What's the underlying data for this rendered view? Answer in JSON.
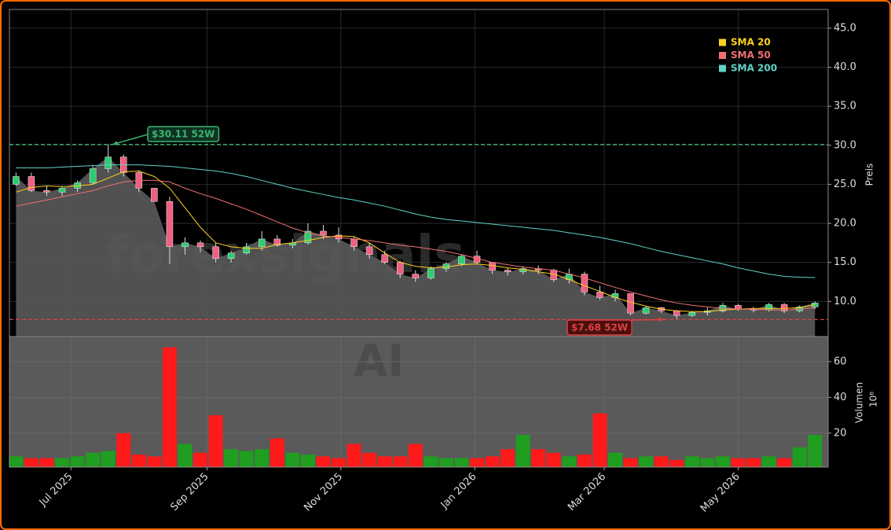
{
  "chart_data": {
    "type": "candlestick",
    "ylabel": "Preis",
    "watermarks": [
      "forexsignals",
      "AI"
    ],
    "x": [
      "2025-06-06",
      "2025-06-13",
      "2025-06-20",
      "2025-06-27",
      "2025-07-04",
      "2025-07-11",
      "2025-07-18",
      "2025-07-25",
      "2025-08-01",
      "2025-08-08",
      "2025-08-15",
      "2025-08-22",
      "2025-08-29",
      "2025-09-05",
      "2025-09-12",
      "2025-09-19",
      "2025-09-26",
      "2025-10-03",
      "2025-10-10",
      "2025-10-17",
      "2025-10-24",
      "2025-10-31",
      "2025-11-07",
      "2025-11-14",
      "2025-11-21",
      "2025-11-28",
      "2025-12-05",
      "2025-12-12",
      "2025-12-19",
      "2025-12-26",
      "2026-01-02",
      "2026-01-09",
      "2026-01-16",
      "2026-01-23",
      "2026-01-30",
      "2026-02-06",
      "2026-02-13",
      "2026-02-20",
      "2026-02-27",
      "2026-03-06",
      "2026-03-13",
      "2026-03-20",
      "2026-03-27",
      "2026-04-03",
      "2026-04-10",
      "2026-04-17",
      "2026-04-24",
      "2026-05-01",
      "2026-05-08",
      "2026-05-15",
      "2026-05-22",
      "2026-05-29",
      "2026-06-05"
    ],
    "open": [
      25,
      26,
      24.2,
      24,
      24.5,
      25.2,
      27,
      28.5,
      26.5,
      24.5,
      22.8,
      17,
      17.5,
      17,
      15.5,
      16.2,
      17,
      18,
      17.2,
      17.5,
      19,
      18.5,
      18,
      17,
      16,
      15,
      13.5,
      13,
      14.2,
      14.8,
      15.8,
      15,
      14,
      13.8,
      14.2,
      14,
      12.8,
      13.5,
      11.2,
      10.5,
      11,
      8.5,
      9.2,
      8.8,
      8.2,
      8.6,
      8.8,
      9.5,
      9,
      8.9,
      9.6,
      8.8,
      9.3
    ],
    "high": [
      26.5,
      26.5,
      24.8,
      24.8,
      25.5,
      27.5,
      30.11,
      28.8,
      26.8,
      24.5,
      23.4,
      18.2,
      17.8,
      17.5,
      16.5,
      17.5,
      19,
      18.5,
      18,
      20,
      19.8,
      19.5,
      18.3,
      17.5,
      16.5,
      15.2,
      14,
      14.5,
      15,
      16,
      16.5,
      15,
      14.3,
      14.5,
      14.6,
      14.2,
      14.2,
      13.8,
      12,
      11.5,
      11,
      9.4,
      9.3,
      8.9,
      8.8,
      9.2,
      9.8,
      9.7,
      9.3,
      9.8,
      9.8,
      9.5,
      10
    ],
    "low": [
      24.8,
      24,
      23.5,
      23.5,
      24,
      25,
      26.5,
      26,
      24,
      22.8,
      14.8,
      16,
      16.3,
      15,
      15,
      16,
      16.5,
      17,
      16.8,
      17.3,
      18,
      17.5,
      16.5,
      15.5,
      14.8,
      13,
      12.5,
      12.8,
      13.8,
      14.5,
      14.8,
      13.5,
      13.3,
      13.5,
      13.5,
      12.5,
      12.3,
      10.8,
      10.2,
      10,
      8.2,
      8.3,
      8.5,
      7.68,
      8,
      8.2,
      8.6,
      8.8,
      8.6,
      8.7,
      8.5,
      8.6,
      9
    ],
    "close": [
      26,
      24.2,
      24,
      24.5,
      25.2,
      27,
      28.5,
      26.5,
      24.5,
      22.8,
      17,
      17.5,
      17,
      15.5,
      16.2,
      17,
      18,
      17.2,
      17.5,
      19,
      18.5,
      18,
      17,
      16,
      15,
      13.5,
      13,
      14.2,
      14.8,
      15.8,
      15,
      14,
      13.8,
      14.2,
      14,
      12.8,
      13.5,
      11.2,
      10.5,
      11,
      8.5,
      9.2,
      8.8,
      8.2,
      8.6,
      8.8,
      9.5,
      9,
      8.9,
      9.6,
      8.8,
      9.3,
      9.8
    ],
    "up_color": "#2ecc71",
    "down_color": "#f06080",
    "volume_up_color": "#1f9e1f",
    "volume_down_color": "#ff1a1a",
    "series": [
      {
        "name": "SMA 20",
        "color": "#ffd21f",
        "values": [
          24,
          24.6,
          24.8,
          24.7,
          24.8,
          25,
          25.8,
          26.6,
          26.7,
          26,
          24.5,
          22,
          19.5,
          17.5,
          17,
          16.8,
          16.8,
          17.3,
          17.5,
          17.8,
          18.2,
          18.4,
          18.3,
          17.5,
          16.2,
          15,
          14.5,
          14.3,
          14.4,
          14.7,
          14.8,
          14.6,
          14.3,
          14.1,
          13.8,
          13.5,
          12.8,
          12,
          11.3,
          10.5,
          9.9,
          9.4,
          9,
          8.8,
          8.7,
          8.7,
          8.9,
          9,
          9.1,
          9.1,
          9.1,
          9.2,
          9.6
        ]
      },
      {
        "name": "SMA 50",
        "color": "#f07070",
        "values": [
          22.2,
          22.6,
          23,
          23.4,
          23.8,
          24.2,
          24.8,
          25.3,
          25.5,
          25.5,
          25.3,
          24.5,
          23.8,
          23.2,
          22.5,
          21.8,
          21,
          20.2,
          19.4,
          18.8,
          18.4,
          18.2,
          18,
          17.8,
          17.5,
          17.2,
          17,
          16.7,
          16.4,
          16,
          15.5,
          15,
          14.7,
          14.4,
          14.2,
          14,
          13.5,
          13,
          12.4,
          11.8,
          11.2,
          10.7,
          10.2,
          9.8,
          9.5,
          9.3,
          9.1,
          9,
          9,
          8.9,
          8.9,
          9,
          9.2
        ]
      },
      {
        "name": "SMA 200",
        "color": "#5fd3c8",
        "values": [
          27.1,
          27.1,
          27.1,
          27.2,
          27.3,
          27.4,
          27.5,
          27.5,
          27.5,
          27.4,
          27.3,
          27.1,
          26.9,
          26.7,
          26.4,
          26,
          25.5,
          25,
          24.5,
          24.1,
          23.7,
          23.3,
          23,
          22.6,
          22.2,
          21.7,
          21.2,
          20.8,
          20.5,
          20.3,
          20.1,
          19.9,
          19.7,
          19.5,
          19.3,
          19.1,
          18.8,
          18.5,
          18.2,
          17.8,
          17.4,
          16.9,
          16.4,
          16,
          15.6,
          15.2,
          14.8,
          14.3,
          13.9,
          13.5,
          13.2,
          13.1,
          13.05
        ]
      }
    ],
    "annotations": [
      {
        "label": "$30.11 52W",
        "value": 30.11,
        "x": "2025-07-20",
        "color": "#3cb371",
        "fill": "#0e3320"
      },
      {
        "label": "$7.68 52W",
        "value": 7.68,
        "x": "2026-03-28",
        "color": "#e04040",
        "fill": "#4a1010"
      }
    ],
    "xlim": [
      "2025-06-03",
      "2026-06-11"
    ],
    "xticks": [
      {
        "value": "2025-07-01",
        "label": "Jul 2025"
      },
      {
        "value": "2025-09-01",
        "label": "Sep 2025"
      },
      {
        "value": "2025-11-01",
        "label": "Nov 2025"
      },
      {
        "value": "2026-01-01",
        "label": "Jan 2026"
      },
      {
        "value": "2026-03-01",
        "label": "Mar 2026"
      },
      {
        "value": "2026-05-01",
        "label": "May 2026"
      }
    ],
    "ylim": [
      5.5,
      47.4
    ],
    "yticks": [
      {
        "value": 10,
        "label": "10.0"
      },
      {
        "value": 15,
        "label": "15.0"
      },
      {
        "value": 20,
        "label": "20.0"
      },
      {
        "value": 25,
        "label": "25.0"
      },
      {
        "value": 30,
        "label": "30.0"
      },
      {
        "value": 35,
        "label": "35.0"
      },
      {
        "value": 40,
        "label": "40.0"
      },
      {
        "value": 45,
        "label": "45.0"
      }
    ],
    "grid": true,
    "legend": "upper right",
    "volume": {
      "label": "Volumen",
      "scale_label": "10⁶",
      "values": [
        7,
        6,
        6,
        6,
        7,
        9,
        10,
        20,
        8,
        7,
        68,
        14,
        9,
        30,
        11,
        10,
        11,
        17,
        9,
        8,
        7,
        6,
        14,
        9,
        7,
        7,
        14,
        7,
        6,
        6,
        6,
        7,
        11,
        19,
        11,
        9,
        7,
        8,
        31,
        9,
        6,
        7,
        7,
        5,
        7,
        6,
        7,
        6,
        6,
        7,
        6,
        12,
        19
      ],
      "ylim": [
        1,
        74
      ],
      "yticks": [
        20,
        40,
        60
      ]
    }
  }
}
